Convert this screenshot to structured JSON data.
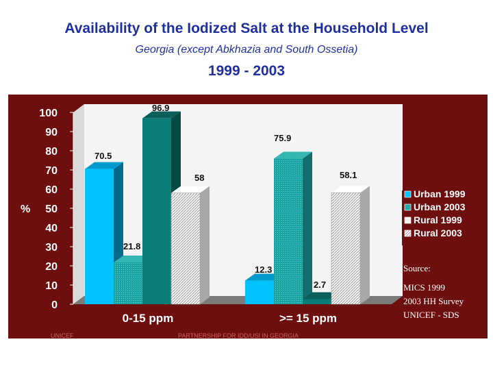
{
  "header": {
    "title": "Availability of the Iodized Salt at the Household Level",
    "subtitle": "Georgia (except Abkhazia and South Ossetia)",
    "years": "1999 - 2003"
  },
  "chart_data": {
    "type": "bar",
    "categories": [
      "0-15 ppm",
      ">= 15 ppm"
    ],
    "series": [
      {
        "name": "Urban 1999",
        "values": [
          70.5,
          12.3
        ]
      },
      {
        "name": "Urban 2003",
        "values": [
          21.8,
          75.9
        ]
      },
      {
        "name": "Rural 1999",
        "values": [
          96.9,
          2.7
        ]
      },
      {
        "name": "Rural 2003",
        "values": [
          58,
          58.1
        ]
      }
    ],
    "data_labels": [
      [
        "70.5",
        "21.8",
        "96.9",
        "58"
      ],
      [
        "12.3",
        "75.9",
        "2.7",
        "58.1"
      ]
    ],
    "ylabel": "%",
    "ylim": [
      0,
      100
    ],
    "yticks": [
      "0",
      "10",
      "20",
      "30",
      "40",
      "50",
      "60",
      "70",
      "80",
      "90",
      "100"
    ],
    "legend_position": "right",
    "bar_style": "3d",
    "colors": {
      "Urban 1999": "#00c2ff",
      "Urban 2003": "#1aa3a3",
      "Rural 1999": "#0b7d78",
      "Rural 2003": "#f2f2f2",
      "panel_background": "#6e0f0f",
      "plot_wall": "#f4f4f4",
      "floor": "#7b7b7b"
    }
  },
  "source": {
    "heading": "Source:",
    "lines": [
      "MICS 1999",
      "2003 HH Survey",
      "UNICEF - SDS"
    ]
  },
  "footer": {
    "left": "UNICEF",
    "center": "PARTNERSHIP FOR IDD/USI IN GEORGIA"
  }
}
